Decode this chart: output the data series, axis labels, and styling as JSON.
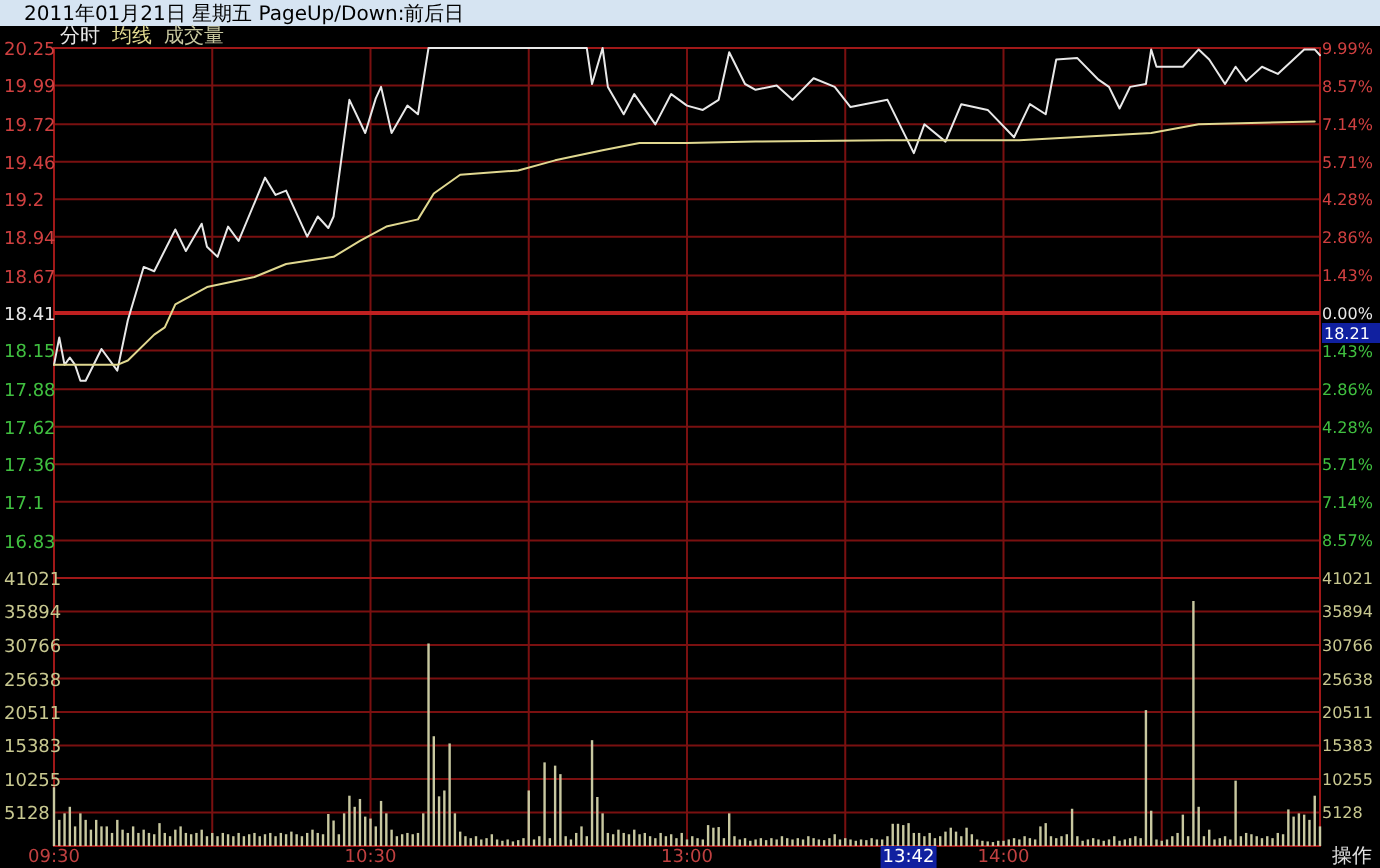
{
  "chart_data": [
    {
      "type": "line",
      "title": "2011年01月21日 星期五 PageUp/Down:前后日",
      "legend": "top left",
      "grid": true,
      "tick_labels": "y",
      "categories": [
        null,
        null,
        null,
        null,
        null,
        null,
        null,
        null,
        null,
        null,
        null,
        null,
        null,
        null,
        null,
        null,
        null,
        null,
        null,
        null,
        null,
        null,
        null,
        null,
        null,
        null,
        null,
        null,
        null,
        null,
        null,
        null,
        null,
        null,
        null,
        null,
        null,
        null,
        null,
        null,
        null,
        null,
        null,
        null,
        null,
        null,
        null,
        null,
        null,
        null,
        null,
        null,
        null,
        null,
        null,
        null,
        null,
        null,
        null,
        null,
        null,
        null,
        null,
        null,
        null,
        null,
        null,
        null,
        null,
        null,
        null,
        null,
        null,
        null,
        null,
        null,
        null,
        null,
        null,
        null,
        null,
        null,
        null,
        null,
        null,
        null,
        null,
        null,
        null,
        null,
        null,
        null,
        null,
        null,
        null,
        null,
        null,
        null,
        null,
        null,
        null,
        null,
        null,
        null,
        null,
        null,
        null,
        null,
        null,
        null,
        null,
        null,
        null,
        null,
        null,
        null,
        null,
        null,
        null,
        null,
        null,
        null,
        null,
        null,
        null,
        null,
        null,
        null,
        null,
        null,
        null,
        null,
        null,
        null,
        null,
        null,
        null,
        null,
        null,
        null,
        null,
        null,
        null,
        null,
        null,
        null,
        null,
        null,
        null,
        null,
        null,
        null,
        null,
        null,
        null,
        null,
        null,
        null,
        null,
        null,
        null,
        null,
        null,
        null,
        null,
        null,
        null,
        null,
        null,
        null,
        null,
        null,
        null,
        null,
        null,
        null,
        null,
        null,
        null,
        null,
        null,
        null,
        null,
        null,
        null,
        null,
        null,
        null,
        null,
        null,
        null,
        null,
        null,
        null,
        null,
        null,
        null,
        null,
        null,
        null,
        null,
        null,
        null,
        null,
        null,
        null,
        null,
        null,
        null,
        null,
        null,
        null,
        null,
        null,
        null,
        null,
        null,
        null,
        null,
        null,
        null,
        null,
        null,
        null,
        null,
        null,
        null,
        null,
        null,
        null,
        null,
        null,
        null,
        null,
        null,
        null,
        null,
        null,
        null,
        null,
        null
      ],
      "ylim": [
        16.57,
        20.25
      ],
      "yticks": [
        20.25,
        19.99,
        19.72,
        19.46,
        19.2,
        18.94,
        18.67,
        18.41,
        18.15,
        17.88,
        17.62,
        17.36,
        17.1,
        16.83
      ],
      "y2lim": [
        -9.99,
        9.99
      ],
      "y2ticks": [
        {
          "value": 9.99,
          "label": "9.99%"
        },
        {
          "value": 8.57,
          "label": "8.57%"
        },
        {
          "value": 7.14,
          "label": "7.14%"
        },
        {
          "value": 5.71,
          "label": "5.71%"
        },
        {
          "value": 4.28,
          "label": "4.28%"
        },
        {
          "value": 2.86,
          "label": "2.86%"
        },
        {
          "value": 1.43,
          "label": "1.43%"
        },
        {
          "value": 0,
          "label": "0.00%"
        },
        {
          "value": -1.43,
          "label": "1.43%"
        },
        {
          "value": -2.86,
          "label": "2.86%"
        },
        {
          "value": -4.28,
          "label": "4.28%"
        },
        {
          "value": -5.71,
          "label": "5.71%"
        },
        {
          "value": -7.14,
          "label": "7.14%"
        },
        {
          "value": -8.57,
          "label": "8.57%"
        }
      ],
      "ref_lines": [
        {
          "axis": "y",
          "value": 18.41,
          "color": "#c02020"
        }
      ],
      "annotations": [
        "18.21"
      ],
      "series": [
        {
          "name": "分时",
          "color": "#e8e8e8",
          "values": [
            18.05,
            18.24,
            18.05,
            18.1,
            18.05,
            17.94,
            17.94,
            null,
            null,
            18.16,
            null,
            null,
            18.01,
            null,
            18.36,
            null,
            null,
            18.73,
            null,
            18.7,
            null,
            null,
            null,
            18.99,
            null,
            18.84,
            null,
            null,
            19.03,
            18.87,
            null,
            18.8,
            null,
            19.01,
            null,
            18.91,
            null,
            null,
            null,
            null,
            19.35,
            null,
            19.23,
            null,
            19.26,
            null,
            null,
            null,
            18.94,
            null,
            19.08,
            null,
            19.0,
            19.08,
            null,
            null,
            19.89,
            null,
            null,
            19.66,
            null,
            19.9,
            19.98,
            null,
            19.66,
            null,
            null,
            19.85,
            null,
            19.79,
            null,
            20.25,
            20.25,
            20.25,
            20.25,
            20.25,
            20.25,
            20.25,
            20.25,
            20.25,
            20.25,
            20.25,
            20.25,
            20.25,
            20.25,
            20.25,
            20.25,
            20.25,
            20.25,
            20.25,
            20.25,
            20.25,
            20.25,
            20.25,
            20.25,
            20.25,
            20.25,
            20.25,
            20.25,
            20.25,
            20.25,
            20.25,
            20.0,
            null,
            20.25,
            19.98,
            null,
            null,
            19.79,
            null,
            19.93,
            null,
            null,
            null,
            19.72,
            null,
            null,
            19.93,
            null,
            null,
            19.85,
            null,
            null,
            19.82,
            null,
            null,
            19.89,
            null,
            20.22,
            null,
            null,
            20.0,
            null,
            19.96,
            null,
            null,
            null,
            19.99,
            null,
            null,
            19.89,
            null,
            null,
            null,
            20.04,
            null,
            null,
            null,
            19.98,
            null,
            null,
            19.84,
            null,
            null,
            null,
            null,
            null,
            null,
            19.89,
            null,
            null,
            null,
            null,
            19.52,
            null,
            19.72,
            null,
            null,
            null,
            19.6,
            null,
            null,
            19.86,
            null,
            null,
            null,
            null,
            19.82,
            null,
            null,
            null,
            null,
            19.63,
            null,
            null,
            19.86,
            null,
            null,
            19.79,
            null,
            20.17,
            null,
            null,
            null,
            20.18,
            null,
            null,
            null,
            20.03,
            null,
            19.98,
            null,
            19.83,
            null,
            19.98,
            null,
            null,
            20.0,
            20.24,
            20.12,
            null,
            null,
            null,
            null,
            20.12,
            null,
            null,
            20.24,
            null,
            20.17,
            null,
            null,
            20.0,
            null,
            20.12,
            null,
            20.02,
            null,
            null,
            20.12,
            null,
            null,
            20.07,
            null,
            null,
            null,
            null,
            20.24,
            null,
            20.24,
            20.2
          ]
        },
        {
          "name": "均线",
          "color": "#e0d890",
          "values": [
            18.05,
            null,
            null,
            null,
            null,
            null,
            null,
            null,
            null,
            null,
            null,
            null,
            18.05,
            null,
            18.08,
            null,
            null,
            null,
            null,
            18.26,
            null,
            18.31,
            null,
            18.47,
            null,
            null,
            null,
            null,
            null,
            18.59,
            null,
            null,
            null,
            null,
            null,
            null,
            null,
            null,
            18.66,
            null,
            null,
            null,
            null,
            null,
            18.75,
            null,
            null,
            null,
            null,
            null,
            null,
            null,
            null,
            18.8,
            null,
            null,
            null,
            null,
            18.91,
            null,
            null,
            null,
            null,
            19.01,
            null,
            null,
            null,
            null,
            null,
            19.06,
            null,
            null,
            19.24,
            null,
            null,
            null,
            null,
            19.37,
            null,
            null,
            null,
            null,
            null,
            null,
            null,
            null,
            null,
            null,
            19.4,
            null,
            null,
            null,
            null,
            null,
            null,
            19.47,
            null,
            null,
            null,
            null,
            null,
            null,
            null,
            null,
            19.54,
            null,
            null,
            null,
            null,
            null,
            null,
            19.59,
            null,
            null,
            null,
            null,
            null,
            null,
            null,
            null,
            19.59,
            null,
            null,
            null,
            null,
            null,
            null,
            null,
            null,
            null,
            null,
            null,
            null,
            19.6,
            null,
            null,
            null,
            null,
            null,
            null,
            null,
            null,
            null,
            null,
            null,
            null,
            null,
            null,
            null,
            null,
            null,
            null,
            null,
            null,
            null,
            null,
            null,
            null,
            19.61,
            null,
            null,
            null,
            null,
            null,
            null,
            null,
            null,
            null,
            null,
            null,
            null,
            null,
            null,
            null,
            null,
            null,
            null,
            null,
            null,
            null,
            null,
            null,
            null,
            19.61,
            null,
            null,
            null,
            null,
            null,
            null,
            null,
            null,
            null,
            null,
            null,
            null,
            null,
            null,
            null,
            null,
            null,
            null,
            null,
            null,
            null,
            null,
            null,
            null,
            19.66,
            null,
            null,
            null,
            null,
            null,
            null,
            null,
            null,
            19.72,
            null,
            null,
            null,
            null,
            null,
            null,
            null,
            null,
            null,
            null,
            null,
            null,
            null,
            null,
            null,
            null,
            null,
            null,
            null,
            null,
            null,
            19.74,
            null
          ]
        }
      ]
    },
    {
      "type": "bar",
      "legend": "top left",
      "grid": true,
      "categories": [
        "09:30",
        null,
        null,
        null,
        null,
        null,
        null,
        null,
        null,
        null,
        null,
        null,
        null,
        null,
        null,
        null,
        null,
        null,
        null,
        null,
        null,
        null,
        null,
        null,
        null,
        null,
        null,
        null,
        null,
        null,
        null,
        null,
        null,
        null,
        null,
        null,
        null,
        null,
        null,
        null,
        null,
        null,
        null,
        null,
        null,
        null,
        null,
        null,
        null,
        null,
        null,
        null,
        null,
        null,
        null,
        null,
        null,
        null,
        null,
        null,
        "10:30",
        null,
        null,
        null,
        null,
        null,
        null,
        null,
        null,
        null,
        null,
        null,
        null,
        null,
        null,
        null,
        null,
        null,
        null,
        null,
        null,
        null,
        null,
        null,
        null,
        null,
        null,
        null,
        null,
        null,
        null,
        null,
        null,
        null,
        null,
        null,
        null,
        null,
        null,
        null,
        null,
        null,
        null,
        null,
        null,
        null,
        null,
        null,
        null,
        null,
        null,
        null,
        null,
        null,
        null,
        null,
        null,
        null,
        null,
        null,
        "13:00",
        null,
        null,
        null,
        null,
        null,
        null,
        null,
        null,
        null,
        null,
        null,
        null,
        null,
        null,
        null,
        null,
        null,
        null,
        null,
        null,
        null,
        null,
        null,
        null,
        null,
        null,
        null,
        null,
        null,
        null,
        null,
        null,
        null,
        null,
        null,
        null,
        null,
        null,
        null,
        null,
        null,
        "13:42",
        null,
        null,
        null,
        null,
        null,
        null,
        null,
        null,
        null,
        null,
        null,
        null,
        null,
        null,
        null,
        null,
        null,
        "14:00",
        null,
        null,
        null,
        null,
        null,
        null,
        null,
        null,
        null,
        null,
        null,
        null,
        null,
        null,
        null,
        null,
        null,
        null,
        null,
        null,
        null,
        null,
        null,
        null,
        null,
        null,
        null,
        null,
        null,
        null,
        null,
        null,
        null,
        null,
        null,
        null,
        null,
        null,
        null,
        null,
        null,
        null,
        null,
        null,
        null,
        null,
        null,
        null,
        null,
        null,
        null,
        null,
        null,
        null,
        null,
        null,
        null,
        null,
        null,
        null
      ],
      "ylim": [
        0,
        41021
      ],
      "yticks": [
        41021,
        35894,
        30766,
        25638,
        20511,
        15383,
        10255,
        5128
      ],
      "y2lim": [
        0,
        41021
      ],
      "y2ticks": [
        41021,
        35894,
        30766,
        25638,
        20511,
        15383,
        10255,
        5128
      ],
      "annotations": [
        "操作"
      ],
      "series": [
        {
          "name": "成交量",
          "color": "#c8c8a0",
          "values": [
            9000,
            4000,
            5000,
            6000,
            3000,
            5000,
            4000,
            2500,
            4000,
            3000,
            3000,
            2000,
            4000,
            2500,
            2000,
            3000,
            2000,
            2500,
            2000,
            1800,
            3500,
            2000,
            1500,
            2500,
            3000,
            2000,
            1800,
            2000,
            2500,
            1500,
            2000,
            1500,
            2000,
            1800,
            1500,
            2000,
            1500,
            1800,
            2000,
            1500,
            1800,
            2000,
            1500,
            2000,
            1800,
            2200,
            1800,
            1500,
            2000,
            2500,
            2000,
            1800,
            4900,
            3900,
            1800,
            5000,
            7700,
            6000,
            7200,
            4500,
            4200,
            3000,
            6900,
            5000,
            2500,
            1500,
            1800,
            2000,
            1800,
            2000,
            5000,
            31000,
            16800,
            7600,
            8500,
            15700,
            5000,
            2200,
            1500,
            1200,
            1500,
            1000,
            1200,
            1800,
            1000,
            800,
            1000,
            700,
            900,
            1200,
            8500,
            1000,
            1500,
            12800,
            1200,
            12300,
            11000,
            1500,
            1000,
            2000,
            3000,
            1500,
            16200,
            7500,
            5000,
            2000,
            1800,
            2500,
            2000,
            1800,
            2500,
            1800,
            2000,
            1500,
            1200,
            2000,
            1500,
            1800,
            1200,
            2000,
            1000,
            1500,
            1200,
            1000,
            3200,
            2800,
            2900,
            1200,
            5000,
            1500,
            1000,
            1200,
            800,
            1000,
            1200,
            900,
            1200,
            1000,
            1500,
            1200,
            1000,
            1200,
            1000,
            1500,
            1200,
            1000,
            900,
            1200,
            1800,
            1000,
            1200,
            1000,
            800,
            1000,
            900,
            1200,
            1000,
            1000,
            1500,
            3400,
            3400,
            3200,
            3500,
            2000,
            2000,
            1500,
            2000,
            1200,
            1500,
            2200,
            2800,
            2200,
            1500,
            2800,
            1800,
            1000,
            800,
            700,
            600,
            800,
            800,
            1000,
            1200,
            1000,
            1500,
            1200,
            1000,
            3000,
            3500,
            1500,
            1200,
            1500,
            1800,
            5700,
            1500,
            800,
            1000,
            1200,
            1000,
            800,
            1000,
            1500,
            800,
            1000,
            1200,
            1500,
            1200,
            20800,
            5400,
            1000,
            800,
            1000,
            1500,
            2000,
            4800,
            1500,
            37500,
            6000,
            1500,
            2500,
            1000,
            1200,
            1500,
            1000,
            10000,
            1500,
            2000,
            1800,
            1500,
            1200,
            1500,
            1200,
            2000,
            1800,
            5600,
            4500,
            5000,
            4800,
            4000,
            7700,
            3000
          ]
        }
      ]
    }
  ]
}
